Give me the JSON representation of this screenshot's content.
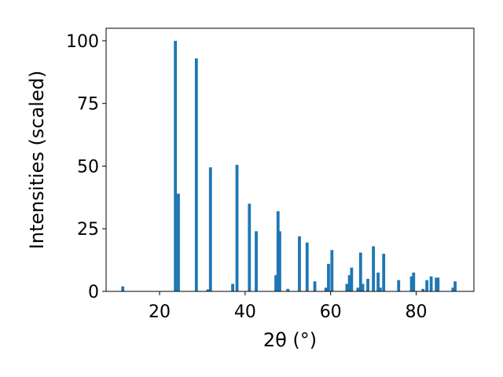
{
  "chart_data": {
    "type": "bar",
    "title": "",
    "xlabel": "2θ (°)",
    "ylabel": "Intensities (scaled)",
    "xlim": [
      7.5,
      93.5
    ],
    "ylim": [
      0,
      105
    ],
    "xticks": [
      "20",
      "40",
      "60",
      "80"
    ],
    "yticks": [
      "0",
      "25",
      "50",
      "75",
      "100"
    ],
    "grid": false,
    "legend": "none",
    "bar_color": "#1f77b4",
    "bar_width": 0.7,
    "series": [
      {
        "x": [
          11.4,
          23.7,
          24.4,
          28.6,
          31.3,
          31.9,
          37.1,
          38.1,
          41.0,
          42.6,
          47.2,
          47.7,
          48.1,
          50.0,
          52.7,
          54.5,
          56.3,
          58.9,
          59.5,
          60.3,
          63.8,
          64.4,
          64.9,
          66.4,
          67.0,
          67.5,
          68.7,
          70.0,
          71.1,
          71.6,
          72.4,
          75.9,
          78.9,
          79.4,
          81.6,
          82.5,
          83.5,
          84.7,
          85.1,
          88.6,
          89.1
        ],
        "values": [
          2,
          100,
          39,
          93,
          0.8,
          49.5,
          3,
          50.5,
          35,
          24,
          6.5,
          32,
          24,
          1,
          22,
          19.5,
          4,
          1.5,
          11,
          16.5,
          3,
          6.5,
          9.5,
          1.5,
          15.5,
          3,
          5,
          18,
          7.5,
          1.5,
          15,
          4.5,
          6,
          7.5,
          1,
          4.5,
          6,
          5.5,
          5.5,
          1.5,
          4
        ]
      }
    ]
  }
}
